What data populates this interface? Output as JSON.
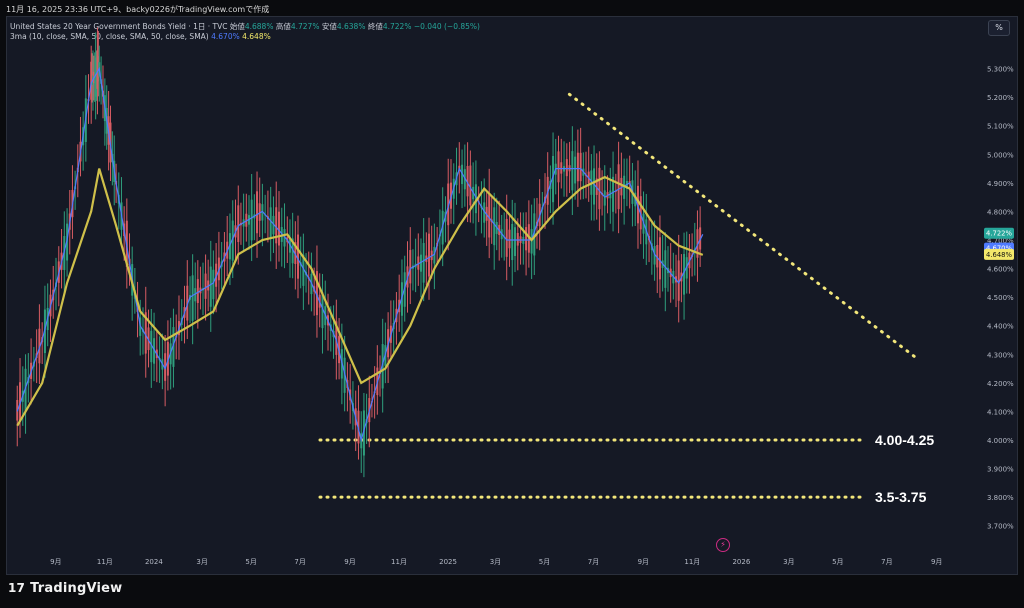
{
  "header": {
    "topline": "11月 16, 2025 23:36 UTC+9、backy0226がTradingView.comで作成",
    "symbol": "United States 20 Year Government Bonds Yield · 1日 · TVC",
    "open_label": "始値",
    "open_value": "4.688%",
    "high_label": "高値",
    "high_value": "4.727%",
    "low_label": "安値",
    "low_value": "4.638%",
    "close_label": "終値",
    "close_value": "4.722%",
    "change": "−0.040 (−0.85%)",
    "ma_label": "3ma (10, close, SMA, 50, close, SMA, 50, close, SMA)",
    "ma_value1": "4.670%",
    "ma_value2": "4.648%",
    "percent_button": "%"
  },
  "footer": {
    "brand": "TradingView"
  },
  "icons": {
    "flash": "lightning-icon",
    "logo": "tradingview-logo"
  },
  "chart_data": {
    "type": "line",
    "title": "United States 20 Year Government Bonds Yield",
    "ylim": [
      3.65,
      5.4
    ],
    "y_ticks": [
      "3.700%",
      "3.800%",
      "3.900%",
      "4.000%",
      "4.100%",
      "4.200%",
      "4.300%",
      "4.400%",
      "4.500%",
      "4.600%",
      "4.700%",
      "4.800%",
      "4.900%",
      "5.000%",
      "5.100%",
      "5.200%",
      "5.300%"
    ],
    "x_ticks": [
      "9月",
      "11月",
      "2024",
      "3月",
      "5月",
      "7月",
      "9月",
      "11月",
      "2025",
      "3月",
      "5月",
      "7月",
      "9月",
      "11月",
      "2026",
      "3月",
      "5月",
      "7月",
      "9月"
    ],
    "x": [
      "2023-07-15",
      "2023-08-15",
      "2023-09-15",
      "2023-10-15",
      "2023-10-25",
      "2023-11-15",
      "2023-12-15",
      "2024-01-15",
      "2024-02-15",
      "2024-03-15",
      "2024-04-15",
      "2024-05-15",
      "2024-06-15",
      "2024-07-15",
      "2024-08-15",
      "2024-09-15",
      "2024-10-15",
      "2024-11-15",
      "2024-12-15",
      "2025-01-15",
      "2025-02-15",
      "2025-03-15",
      "2025-04-15",
      "2025-05-15",
      "2025-06-15",
      "2025-07-15",
      "2025-08-15",
      "2025-09-15",
      "2025-10-15",
      "2025-11-14"
    ],
    "series": [
      {
        "color": "#4f7bff",
        "values": [
          4.1,
          4.35,
          4.7,
          5.25,
          5.3,
          4.9,
          4.4,
          4.25,
          4.5,
          4.55,
          4.75,
          4.8,
          4.7,
          4.55,
          4.35,
          4.0,
          4.3,
          4.6,
          4.65,
          4.95,
          4.8,
          4.7,
          4.7,
          4.95,
          4.95,
          4.85,
          4.9,
          4.65,
          4.55,
          4.72
        ]
      },
      {
        "color": "#cfc04a",
        "values": [
          4.05,
          4.2,
          4.55,
          4.8,
          4.95,
          4.75,
          4.45,
          4.35,
          4.4,
          4.45,
          4.65,
          4.7,
          4.72,
          4.6,
          4.4,
          4.2,
          4.25,
          4.4,
          4.6,
          4.75,
          4.88,
          4.8,
          4.7,
          4.8,
          4.88,
          4.92,
          4.88,
          4.75,
          4.68,
          4.648
        ]
      }
    ],
    "annotations": [
      {
        "text": "4.00-4.25",
        "y": 4.0
      },
      {
        "text": "3.5-3.75",
        "y": 3.8
      }
    ],
    "trendline": {
      "x": [
        "2025-06-01",
        "2026-08-10"
      ],
      "y": [
        5.21,
        4.28
      ]
    },
    "price_tags": [
      {
        "text": "4.722%",
        "y": 4.722,
        "bg": "#26a69a",
        "fg": "#ffffff"
      },
      {
        "text": "4.670%",
        "y": 4.67,
        "bg": "#4f7bff",
        "fg": "#ffffff"
      },
      {
        "text": "4.648%",
        "y": 4.648,
        "bg": "#f3e86a",
        "fg": "#111111"
      }
    ],
    "grid": false,
    "legend_placement": "top-left"
  }
}
